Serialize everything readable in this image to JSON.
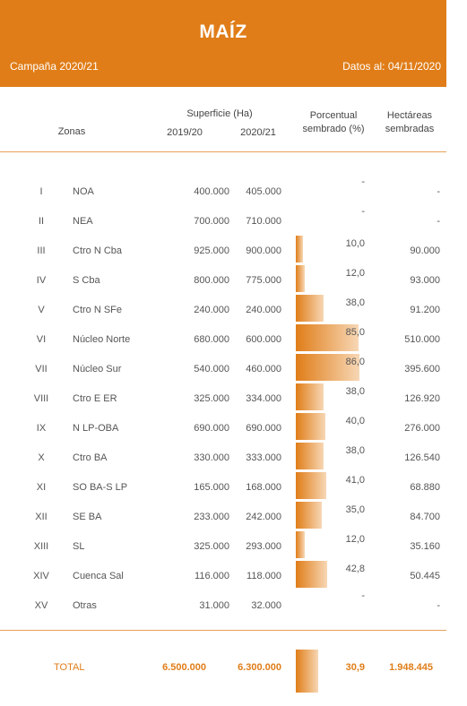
{
  "header": {
    "title": "MAÍZ",
    "campaign": "Campaña 2020/21",
    "date": "Datos al: 04/11/2020"
  },
  "columns": {
    "zonas": "Zonas",
    "superficie": "Superficie (Ha)",
    "y1920": "2019/20",
    "y2021": "2020/21",
    "porcentual": "Porcentual",
    "sembrado": "sembrado (%)",
    "hectareas": "Hectáreas",
    "sembradas": "sembradas"
  },
  "accent": "#e07d18",
  "rows": [
    {
      "roman": "I",
      "zone": "NOA",
      "s1920": "400.000",
      "s2021": "405.000",
      "pct": "-",
      "pct_value": 0,
      "ha": "-"
    },
    {
      "roman": "II",
      "zone": "NEA",
      "s1920": "700.000",
      "s2021": "710.000",
      "pct": "-",
      "pct_value": 0,
      "ha": "-"
    },
    {
      "roman": "III",
      "zone": "Ctro N Cba",
      "s1920": "925.000",
      "s2021": "900.000",
      "pct": "10,0",
      "pct_value": 10.0,
      "ha": "90.000"
    },
    {
      "roman": "IV",
      "zone": "S Cba",
      "s1920": "800.000",
      "s2021": "775.000",
      "pct": "12,0",
      "pct_value": 12.0,
      "ha": "93.000"
    },
    {
      "roman": "V",
      "zone": "Ctro N SFe",
      "s1920": "240.000",
      "s2021": "240.000",
      "pct": "38,0",
      "pct_value": 38.0,
      "ha": "91.200"
    },
    {
      "roman": "VI",
      "zone": "Núcleo Norte",
      "s1920": "680.000",
      "s2021": "600.000",
      "pct": "85,0",
      "pct_value": 85.0,
      "ha": "510.000"
    },
    {
      "roman": "VII",
      "zone": "Núcleo Sur",
      "s1920": "540.000",
      "s2021": "460.000",
      "pct": "86,0",
      "pct_value": 86.0,
      "ha": "395.600"
    },
    {
      "roman": "VIII",
      "zone": "Ctro E ER",
      "s1920": "325.000",
      "s2021": "334.000",
      "pct": "38,0",
      "pct_value": 38.0,
      "ha": "126.920"
    },
    {
      "roman": "IX",
      "zone": "N LP-OBA",
      "s1920": "690.000",
      "s2021": "690.000",
      "pct": "40,0",
      "pct_value": 40.0,
      "ha": "276.000"
    },
    {
      "roman": "X",
      "zone": "Ctro BA",
      "s1920": "330.000",
      "s2021": "333.000",
      "pct": "38,0",
      "pct_value": 38.0,
      "ha": "126.540"
    },
    {
      "roman": "XI",
      "zone": "SO BA-S LP",
      "s1920": "165.000",
      "s2021": "168.000",
      "pct": "41,0",
      "pct_value": 41.0,
      "ha": "68.880"
    },
    {
      "roman": "XII",
      "zone": "SE BA",
      "s1920": "233.000",
      "s2021": "242.000",
      "pct": "35,0",
      "pct_value": 35.0,
      "ha": "84.700"
    },
    {
      "roman": "XIII",
      "zone": "SL",
      "s1920": "325.000",
      "s2021": "293.000",
      "pct": "12,0",
      "pct_value": 12.0,
      "ha": "35.160"
    },
    {
      "roman": "XIV",
      "zone": "Cuenca Sal",
      "s1920": "116.000",
      "s2021": "118.000",
      "pct": "42,8",
      "pct_value": 42.8,
      "ha": "50.445"
    },
    {
      "roman": "XV",
      "zone": "Otras",
      "s1920": "31.000",
      "s2021": "32.000",
      "pct": "-",
      "pct_value": 0,
      "ha": "-"
    }
  ],
  "total": {
    "label": "TOTAL",
    "s1920": "6.500.000",
    "s2021": "6.300.000",
    "pct": "30,9",
    "pct_value": 30.9,
    "ha": "1.948.445"
  }
}
